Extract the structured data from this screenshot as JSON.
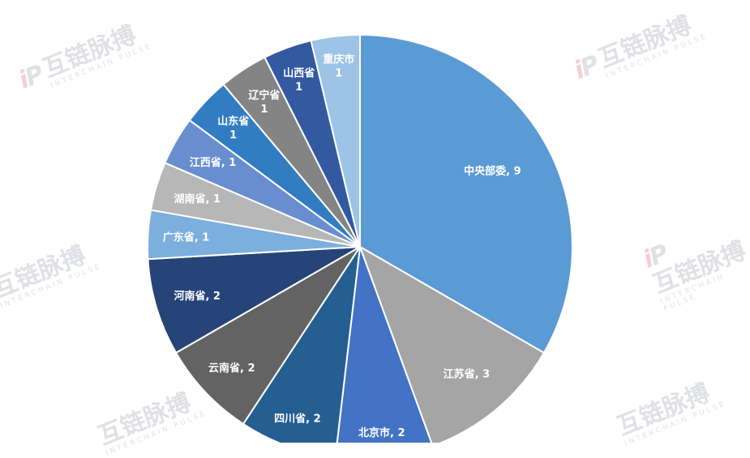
{
  "chart_data": {
    "type": "pie",
    "categories": [
      "中央部委",
      "江苏省",
      "北京市",
      "四川省",
      "云南省",
      "河南省",
      "广东省",
      "湖南省",
      "江西省",
      "山东省",
      "辽宁省",
      "山西省",
      "重庆市"
    ],
    "values": [
      9,
      3,
      2,
      2,
      2,
      2,
      1,
      1,
      1,
      1,
      1,
      1,
      1
    ],
    "labels": [
      "中央部委, 9",
      "江苏省, 3",
      "北京市, 2",
      "四川省, 2",
      "云南省, 2",
      "河南省, 2",
      "广东省, 1",
      "湖南省, 1",
      "江西省, 1",
      "山东省\n1",
      "辽宁省\n1",
      "山西省\n1",
      "重庆市\n1"
    ],
    "colors": [
      "#5b9bd5",
      "#a5a5a5",
      "#4472c4",
      "#255e91",
      "#636363",
      "#264478",
      "#7cafdd",
      "#b7b7b7",
      "#698ed0",
      "#327dc2",
      "#848484",
      "#335aa1",
      "#9dc3e6"
    ],
    "start_angle": 0,
    "direction": "clockwise",
    "legend": "none"
  },
  "watermark": {
    "logo_text": "iP",
    "name": "互链脉搏",
    "sub": "INTERCHAIN PULSE"
  }
}
